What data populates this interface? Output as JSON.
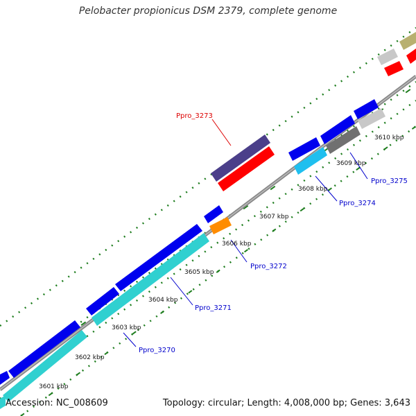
{
  "title": "Pelobacter propionicus DSM 2379, complete genome",
  "footer": {
    "accession": "Accession: NC_008609",
    "topology": "Topology: circular; Length: 4,008,000 bp; Genes: 3,643"
  },
  "colors": {
    "backbone": "#888888",
    "dots": "#1e7d1e",
    "blue": "#0000ee",
    "cyan": "#30d0d0",
    "red": "#ff0000",
    "purple": "#4b3f8a",
    "orange": "#ff8c00",
    "sky": "#1fbfef",
    "gray": "#707070",
    "lightgray": "#c8c8c8",
    "olive": "#b8b070",
    "label_blue": "#0000cc",
    "label_red": "#dd0000"
  },
  "kbp_ticks": [
    "3601 kbp",
    "3602 kbp",
    "3603 kbp",
    "3604 kbp",
    "3605 kbp",
    "3606 kbp",
    "3607 kbp",
    "3608 kbp",
    "3609 kbp",
    "3610 kbp"
  ],
  "gene_labels": [
    {
      "name": "Ppro_3273",
      "color": "red"
    },
    {
      "name": "Ppro_3270",
      "color": "blue"
    },
    {
      "name": "Ppro_3271",
      "color": "blue"
    },
    {
      "name": "Ppro_3272",
      "color": "blue"
    },
    {
      "name": "Ppro_3274",
      "color": "blue"
    },
    {
      "name": "Ppro_3275",
      "color": "blue"
    }
  ]
}
